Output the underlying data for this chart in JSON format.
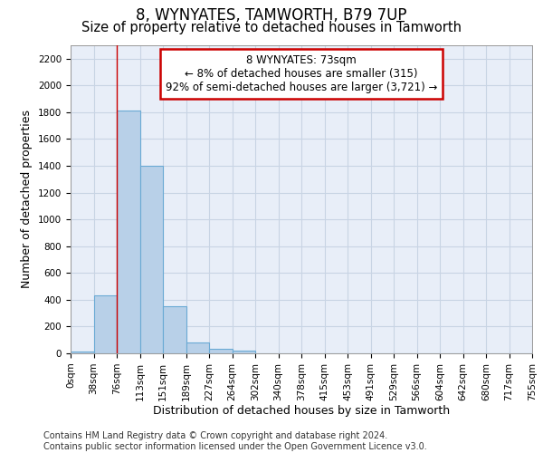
{
  "title": "8, WYNYATES, TAMWORTH, B79 7UP",
  "subtitle": "Size of property relative to detached houses in Tamworth",
  "xlabel": "Distribution of detached houses by size in Tamworth",
  "ylabel": "Number of detached properties",
  "bar_values": [
    15,
    430,
    1810,
    1400,
    350,
    80,
    35,
    20,
    0,
    0,
    0,
    0,
    0,
    0,
    0,
    0,
    0,
    0,
    0,
    0
  ],
  "bar_labels": [
    "0sqm",
    "38sqm",
    "76sqm",
    "113sqm",
    "151sqm",
    "189sqm",
    "227sqm",
    "264sqm",
    "302sqm",
    "340sqm",
    "378sqm",
    "415sqm",
    "453sqm",
    "491sqm",
    "529sqm",
    "566sqm",
    "604sqm",
    "642sqm",
    "680sqm",
    "717sqm",
    "755sqm"
  ],
  "bar_color": "#b8d0e8",
  "bar_edge_color": "#6aaad4",
  "grid_color": "#c8d4e4",
  "background_color": "#e8eef8",
  "annotation_line1": "8 WYNYATES: 73sqm",
  "annotation_line2": "← 8% of detached houses are smaller (315)",
  "annotation_line3": "92% of semi-detached houses are larger (3,721) →",
  "annotation_box_color": "#cc0000",
  "vline_x_index": 2,
  "vline_color": "#cc0000",
  "ylim": [
    0,
    2300
  ],
  "yticks": [
    0,
    200,
    400,
    600,
    800,
    1000,
    1200,
    1400,
    1600,
    1800,
    2000,
    2200
  ],
  "footer_text": "Contains HM Land Registry data © Crown copyright and database right 2024.\nContains public sector information licensed under the Open Government Licence v3.0.",
  "title_fontsize": 12,
  "subtitle_fontsize": 10.5,
  "label_fontsize": 9,
  "tick_fontsize": 7.5,
  "footer_fontsize": 7
}
